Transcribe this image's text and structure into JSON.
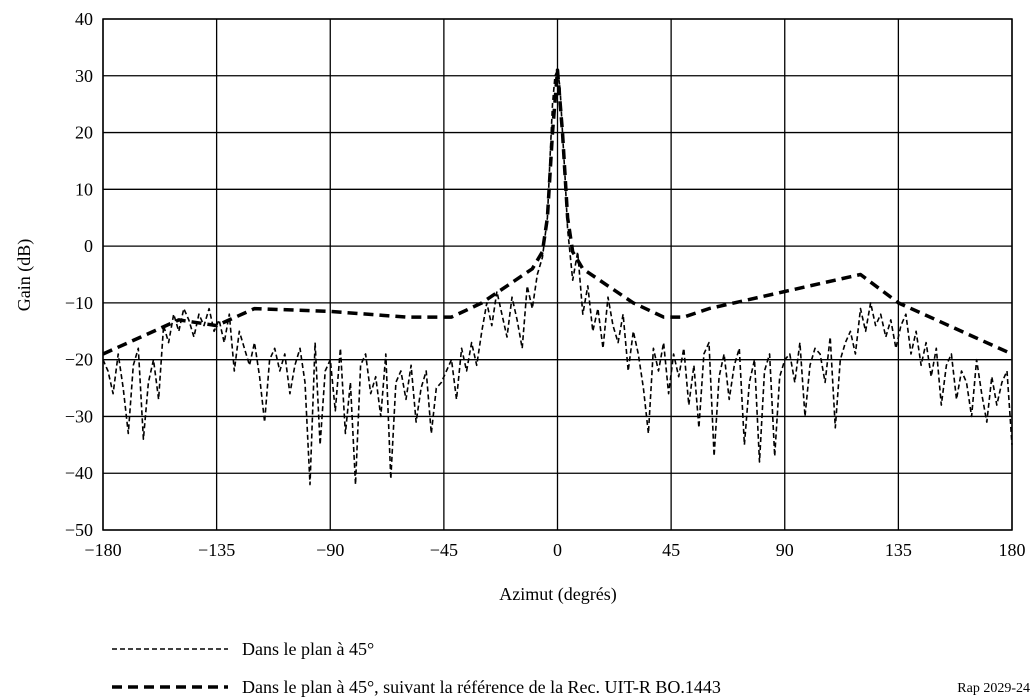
{
  "chart_data": {
    "type": "line",
    "title": "",
    "xlabel": "Azimut (degrés)",
    "ylabel": "Gain (dB)",
    "xlim": [
      -180,
      180
    ],
    "ylim": [
      -50,
      40
    ],
    "xticks": [
      -180,
      -135,
      -90,
      -45,
      0,
      45,
      90,
      135,
      180
    ],
    "yticks": [
      -50,
      -40,
      -30,
      -20,
      -10,
      0,
      10,
      20,
      30,
      40
    ],
    "xtick_labels": [
      "−180",
      "−135",
      "−90",
      "−45",
      "0",
      "45",
      "90",
      "135",
      "180"
    ],
    "ytick_labels": [
      "−50",
      "−40",
      "−30",
      "−20",
      "−10",
      "0",
      "10",
      "20",
      "30",
      "40"
    ],
    "grid": true,
    "legend_position": "bottom",
    "series": [
      {
        "name": "Dans le plan à 45°",
        "style": "fine-dashed",
        "x": [
          -180,
          -178,
          -176,
          -174,
          -172,
          -170,
          -168,
          -166,
          -164,
          -162,
          -160,
          -158,
          -156,
          -154,
          -152,
          -150,
          -148,
          -146,
          -144,
          -142,
          -140,
          -138,
          -136,
          -134,
          -132,
          -130,
          -128,
          -126,
          -124,
          -122,
          -120,
          -118,
          -116,
          -114,
          -112,
          -110,
          -108,
          -106,
          -104,
          -102,
          -100,
          -98,
          -96,
          -94,
          -92,
          -90,
          -88,
          -86,
          -84,
          -82,
          -80,
          -78,
          -76,
          -74,
          -72,
          -70,
          -68,
          -66,
          -64,
          -62,
          -60,
          -58,
          -56,
          -54,
          -52,
          -50,
          -48,
          -46,
          -44,
          -42,
          -40,
          -38,
          -36,
          -34,
          -32,
          -30,
          -28,
          -26,
          -24,
          -22,
          -20,
          -18,
          -16,
          -14,
          -12,
          -10,
          -8,
          -6,
          -4,
          -3,
          -2,
          -1,
          0,
          1,
          2,
          3,
          4,
          6,
          8,
          10,
          12,
          14,
          16,
          18,
          20,
          22,
          24,
          26,
          28,
          30,
          32,
          34,
          36,
          38,
          40,
          42,
          44,
          46,
          48,
          50,
          52,
          54,
          56,
          58,
          60,
          62,
          64,
          66,
          68,
          70,
          72,
          74,
          76,
          78,
          80,
          82,
          84,
          86,
          88,
          90,
          92,
          94,
          96,
          98,
          100,
          102,
          104,
          106,
          108,
          110,
          112,
          114,
          116,
          118,
          120,
          122,
          124,
          126,
          128,
          130,
          132,
          134,
          136,
          138,
          140,
          142,
          144,
          146,
          148,
          150,
          152,
          154,
          156,
          158,
          160,
          162,
          164,
          166,
          168,
          170,
          172,
          174,
          176,
          178,
          180
        ],
        "y": [
          -20,
          -22,
          -26,
          -19,
          -25,
          -33,
          -21,
          -18,
          -34,
          -24,
          -20,
          -27,
          -14,
          -17,
          -12,
          -15,
          -11,
          -13,
          -16,
          -12,
          -14,
          -11,
          -15,
          -13,
          -17,
          -12,
          -22,
          -15,
          -18,
          -21,
          -17,
          -23,
          -31,
          -20,
          -18,
          -22,
          -19,
          -26,
          -21,
          -18,
          -24,
          -42,
          -17,
          -35,
          -22,
          -20,
          -29,
          -18,
          -33,
          -24,
          -42,
          -21,
          -19,
          -26,
          -23,
          -30,
          -19,
          -41,
          -24,
          -22,
          -27,
          -21,
          -31,
          -25,
          -22,
          -33,
          -25,
          -24,
          -22,
          -20,
          -27,
          -18,
          -22,
          -17,
          -21,
          -15,
          -10,
          -14,
          -8,
          -12,
          -16,
          -9,
          -13,
          -18,
          -7,
          -11,
          -5,
          -2,
          5,
          15,
          25,
          30,
          31,
          28,
          20,
          12,
          3,
          -6,
          -1,
          -12,
          -7,
          -15,
          -11,
          -18,
          -9,
          -14,
          -17,
          -12,
          -22,
          -15,
          -19,
          -25,
          -33,
          -18,
          -22,
          -17,
          -26,
          -19,
          -23,
          -18,
          -28,
          -21,
          -32,
          -19,
          -17,
          -37,
          -23,
          -19,
          -27,
          -21,
          -18,
          -35,
          -24,
          -20,
          -38,
          -22,
          -19,
          -37,
          -23,
          -20,
          -19,
          -24,
          -17,
          -30,
          -21,
          -18,
          -19,
          -24,
          -16,
          -32,
          -20,
          -17,
          -15,
          -19,
          -11,
          -15,
          -10,
          -14,
          -12,
          -16,
          -13,
          -18,
          -14,
          -12,
          -19,
          -15,
          -21,
          -17,
          -23,
          -18,
          -28,
          -21,
          -19,
          -27,
          -22,
          -24,
          -30,
          -20,
          -26,
          -31,
          -23,
          -28,
          -24,
          -22,
          -35
        ]
      },
      {
        "name": "Dans le plan à 45°, suivant la référence de la Rec. UIT-R BO.1443",
        "style": "heavy-dashed",
        "x": [
          -180,
          -165,
          -150,
          -135,
          -120,
          -90,
          -60,
          -50,
          -42,
          -30,
          -20,
          -10,
          -6,
          -4,
          -2,
          0,
          2,
          4,
          6,
          10,
          20,
          30,
          42,
          50,
          60,
          90,
          120,
          135,
          150,
          165,
          180
        ],
        "y": [
          -19,
          -16,
          -13,
          -14,
          -11,
          -11.5,
          -12.5,
          -12.5,
          -12.5,
          -10,
          -7,
          -4,
          -1,
          5,
          20,
          31,
          20,
          5,
          -1,
          -4,
          -7,
          -10,
          -12.5,
          -12.5,
          -11,
          -8,
          -5,
          -10,
          -13,
          -16,
          -19
        ]
      }
    ],
    "figure_code": "Rap 2029-24"
  }
}
